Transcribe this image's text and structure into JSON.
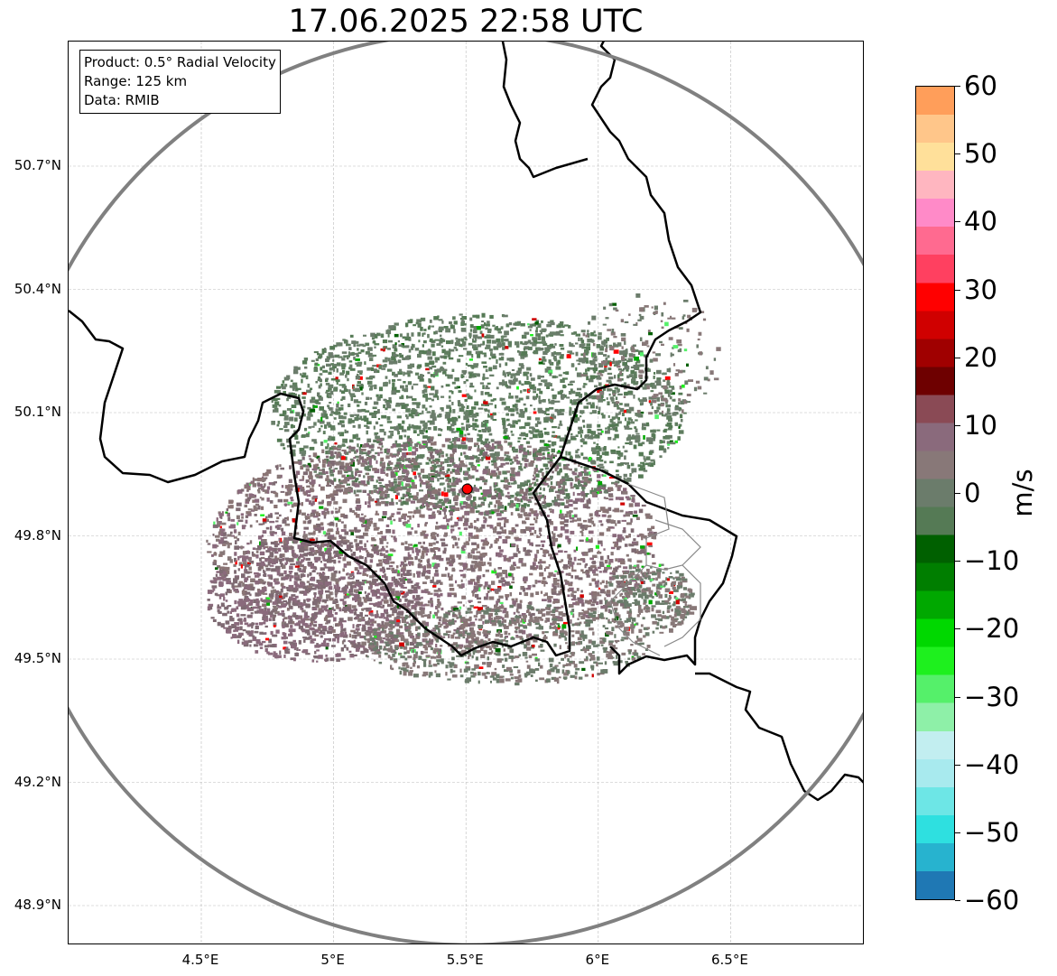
{
  "title": "17.06.2025 22:58 UTC",
  "info": {
    "product": "Product: 0.5° Radial Velocity",
    "range": "Range: 125 km",
    "data": "Data: RMIB"
  },
  "lat_ticks": [
    {
      "value": 50.7,
      "label": "50.7°N"
    },
    {
      "value": 50.4,
      "label": "50.4°N"
    },
    {
      "value": 50.1,
      "label": "50.1°N"
    },
    {
      "value": 49.8,
      "label": "49.8°N"
    },
    {
      "value": 49.5,
      "label": "49.5°N"
    },
    {
      "value": 49.2,
      "label": "49.2°N"
    },
    {
      "value": 48.9,
      "label": "48.9°N"
    }
  ],
  "lon_ticks": [
    {
      "value": 4.5,
      "label": "4.5°E"
    },
    {
      "value": 5.0,
      "label": "5°E"
    },
    {
      "value": 5.5,
      "label": "5.5°E"
    },
    {
      "value": 6.0,
      "label": "6°E"
    },
    {
      "value": 6.5,
      "label": "6.5°E"
    }
  ],
  "radar_site": {
    "lon": 5.505,
    "lat": 49.914,
    "color": "#ff0000"
  },
  "colorbar": {
    "label": "m/s",
    "min": -60,
    "max": 60,
    "ticks": [
      {
        "value": 60,
        "label": "60"
      },
      {
        "value": 50,
        "label": "50"
      },
      {
        "value": 40,
        "label": "40"
      },
      {
        "value": 30,
        "label": "30"
      },
      {
        "value": 20,
        "label": "20"
      },
      {
        "value": 10,
        "label": "10"
      },
      {
        "value": 0,
        "label": "0"
      },
      {
        "value": -10,
        "label": "−10"
      },
      {
        "value": -20,
        "label": "−20"
      },
      {
        "value": -30,
        "label": "−30"
      },
      {
        "value": -40,
        "label": "−40"
      },
      {
        "value": -50,
        "label": "−50"
      },
      {
        "value": -60,
        "label": "−60"
      }
    ],
    "colors": [
      "#1f78b4",
      "#27b3cf",
      "#2ee0e0",
      "#6de6e6",
      "#a8eaee",
      "#c2eef0",
      "#8ef0a8",
      "#55f06a",
      "#1ef01e",
      "#00d800",
      "#00a800",
      "#007e00",
      "#006000",
      "#557a55",
      "#6b7c6b",
      "#887878",
      "#8a6a7c",
      "#8a4a55",
      "#6e0000",
      "#a00000",
      "#d00000",
      "#ff0000",
      "#ff4060",
      "#ff6a90",
      "#ff8ac8",
      "#ffb6c0",
      "#ffe09a",
      "#ffc68a",
      "#ff9e5a"
    ]
  }
}
